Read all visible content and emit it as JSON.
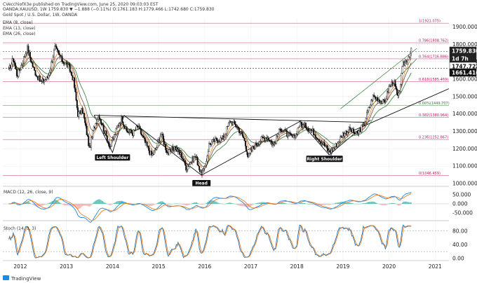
{
  "header": {
    "publisher": "CVecchiofX3e published on TradingView.com, June 25, 2020 09:03:03 EST",
    "symbol_line": "OANDA:XAUUSD, 1W  1759.830  ▼ −1.888 (−0.11%)  O:1761.183  H:1779.466  L:1742.680  C:1759.830",
    "title": "Gold Spot / U.S. Dollar, 1W, OANDA",
    "studies": [
      "EMA (8, close)",
      "EMA (13, close)",
      "EMA (26, close)"
    ]
  },
  "footer": {
    "brand": "TradingView"
  },
  "chart_data": [
    {
      "type": "line",
      "panel": "price",
      "instrument": "XAUUSD",
      "ylim": [
        1000,
        1950
      ],
      "x_ticks": [
        "2012",
        "2013",
        "2014",
        "2015",
        "2016",
        "2017",
        "2018",
        "2019",
        "2020",
        "2021"
      ],
      "y_ticks": [
        1000,
        1100,
        1200,
        1300,
        1400,
        1500,
        1600,
        1700,
        1800,
        1900
      ],
      "close_path": [
        [
          2011.75,
          1650
        ],
        [
          2011.85,
          1720
        ],
        [
          2011.93,
          1620
        ],
        [
          2012.05,
          1700
        ],
        [
          2012.15,
          1780
        ],
        [
          2012.3,
          1650
        ],
        [
          2012.45,
          1580
        ],
        [
          2012.6,
          1610
        ],
        [
          2012.75,
          1780
        ],
        [
          2012.9,
          1710
        ],
        [
          2013.05,
          1670
        ],
        [
          2013.15,
          1600
        ],
        [
          2013.25,
          1400
        ],
        [
          2013.35,
          1420
        ],
        [
          2013.45,
          1280
        ],
        [
          2013.5,
          1200
        ],
        [
          2013.6,
          1320
        ],
        [
          2013.7,
          1400
        ],
        [
          2013.8,
          1320
        ],
        [
          2013.95,
          1210
        ],
        [
          2014.1,
          1320
        ],
        [
          2014.2,
          1380
        ],
        [
          2014.3,
          1300
        ],
        [
          2014.45,
          1290
        ],
        [
          2014.55,
          1330
        ],
        [
          2014.7,
          1240
        ],
        [
          2014.85,
          1160
        ],
        [
          2014.95,
          1200
        ],
        [
          2015.05,
          1290
        ],
        [
          2015.2,
          1170
        ],
        [
          2015.35,
          1210
        ],
        [
          2015.5,
          1160
        ],
        [
          2015.6,
          1090
        ],
        [
          2015.8,
          1160
        ],
        [
          2015.92,
          1060
        ],
        [
          2016.0,
          1080
        ],
        [
          2016.1,
          1230
        ],
        [
          2016.25,
          1250
        ],
        [
          2016.4,
          1260
        ],
        [
          2016.55,
          1360
        ],
        [
          2016.7,
          1330
        ],
        [
          2016.85,
          1260
        ],
        [
          2016.95,
          1150
        ],
        [
          2017.05,
          1210
        ],
        [
          2017.2,
          1250
        ],
        [
          2017.35,
          1270
        ],
        [
          2017.5,
          1220
        ],
        [
          2017.65,
          1320
        ],
        [
          2017.8,
          1280
        ],
        [
          2017.95,
          1260
        ],
        [
          2018.05,
          1340
        ],
        [
          2018.2,
          1330
        ],
        [
          2018.35,
          1300
        ],
        [
          2018.5,
          1250
        ],
        [
          2018.6,
          1220
        ],
        [
          2018.7,
          1180
        ],
        [
          2018.85,
          1220
        ],
        [
          2019.0,
          1285
        ],
        [
          2019.15,
          1310
        ],
        [
          2019.3,
          1280
        ],
        [
          2019.45,
          1340
        ],
        [
          2019.55,
          1420
        ],
        [
          2019.65,
          1500
        ],
        [
          2019.75,
          1490
        ],
        [
          2019.9,
          1460
        ],
        [
          2020.0,
          1550
        ],
        [
          2020.1,
          1590
        ],
        [
          2020.2,
          1480
        ],
        [
          2020.3,
          1680
        ],
        [
          2020.4,
          1720
        ],
        [
          2020.48,
          1760
        ]
      ],
      "series": [
        {
          "name": "EMA (8, close)",
          "color": "#e67e22"
        },
        {
          "name": "EMA (13, close)",
          "color": "#6d4c41"
        },
        {
          "name": "EMA (26, close)",
          "color": "#2e7d32"
        }
      ],
      "fib_levels": [
        {
          "label": "1(1921.075)",
          "value": 1921.075,
          "color": "#c2185b"
        },
        {
          "label": "0.786(1808.762)",
          "value": 1808.762,
          "color": "#c2185b"
        },
        {
          "label": "0.764(1716.886)",
          "value": 1716.886,
          "color": "#c2185b"
        },
        {
          "label": "0.618(1585.469)",
          "value": 1585.469,
          "color": "#c2185b"
        },
        {
          "label": "0.00%(1449.707)",
          "value": 1449.707,
          "color": "#2e7d32"
        },
        {
          "label": "0.382(1380.964)",
          "value": 1380.964,
          "color": "#c2185b"
        },
        {
          "label": "0.236(1252.867)",
          "value": 1252.867,
          "color": "#c2185b"
        },
        {
          "label": "0(1046.459)",
          "value": 1046.459,
          "color": "#c2185b"
        }
      ],
      "annotations": [
        "Left Shoulder",
        "Head",
        "Right Shoulder"
      ],
      "price_tags": [
        {
          "label": "1759.830",
          "value": 1759.83,
          "bg": "#222222"
        },
        {
          "label": "1d 7h",
          "value": 1737,
          "bg": "#222222"
        },
        {
          "label": "1747.722",
          "value": 1747.722,
          "bg": "#ffffff"
        },
        {
          "label": "1661.416",
          "value": 1661.416,
          "bg": "#111111"
        }
      ]
    },
    {
      "type": "line",
      "panel": "macd",
      "title": "MACD (12, 26, close, 9)",
      "ylim": [
        -80,
        80
      ],
      "y_ticks": [
        "50.000",
        "0.000",
        "-50.000"
      ]
    },
    {
      "type": "line",
      "panel": "stoch",
      "title": "Stoch (14, 3, 3)",
      "ylim": [
        0,
        100
      ],
      "y_ticks": [
        "80.00",
        "40.00",
        "0.00"
      ]
    }
  ]
}
